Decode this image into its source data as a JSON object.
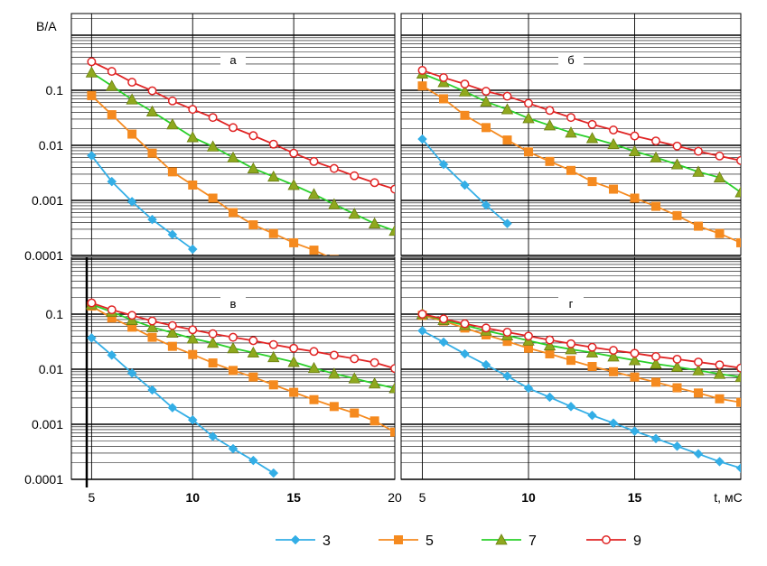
{
  "y_axis_label": "В/А",
  "x_axis_label": "t, мС",
  "chart_data": {
    "type": "scatter",
    "y_scale": "log",
    "ylim": [
      0.0001,
      1
    ],
    "y_ticks": [
      0.0001,
      0.001,
      0.01,
      0.1
    ],
    "y_tick_labels": [
      "0.0001",
      "0.001",
      "0.01",
      "0.1"
    ],
    "xlim": [
      4,
      20
    ],
    "x_ticks": [
      5,
      10,
      15,
      20
    ],
    "grid": true,
    "legend_placement": "bottom",
    "legend": [
      {
        "name": "3",
        "color": "#33aee6",
        "marker": "diamond"
      },
      {
        "name": "5",
        "color": "#f58a1f",
        "marker": "square"
      },
      {
        "name": "7",
        "color": "#8fa81e",
        "marker": "triangle"
      },
      {
        "name": "9",
        "color": "#e02424",
        "marker": "circle"
      }
    ],
    "panels": [
      {
        "label": "а",
        "series": [
          {
            "name": "3",
            "x": [
              5,
              6,
              7,
              8,
              9,
              10
            ],
            "y": [
              0.0065,
              0.0022,
              0.00095,
              0.00045,
              0.00024,
              0.00013
            ]
          },
          {
            "name": "5",
            "x": [
              5,
              6,
              7,
              8,
              9,
              10,
              11,
              12,
              13,
              14,
              15,
              16,
              17
            ],
            "y": [
              0.08,
              0.036,
              0.016,
              0.0072,
              0.0033,
              0.0019,
              0.0011,
              0.0006,
              0.00036,
              0.00025,
              0.00017,
              0.000125,
              8.5e-05
            ]
          },
          {
            "name": "7",
            "x": [
              5,
              6,
              7,
              8,
              9,
              10,
              11,
              12,
              13,
              14,
              15,
              16,
              17,
              18,
              19,
              20
            ],
            "y": [
              0.21,
              0.12,
              0.068,
              0.041,
              0.024,
              0.014,
              0.0095,
              0.006,
              0.0038,
              0.0027,
              0.0019,
              0.0013,
              0.00085,
              0.00057,
              0.00038,
              0.00028
            ]
          },
          {
            "name": "9",
            "x": [
              5,
              6,
              7,
              8,
              9,
              10,
              11,
              12,
              13,
              14,
              15,
              16,
              17,
              18,
              19,
              20
            ],
            "y": [
              0.33,
              0.22,
              0.14,
              0.098,
              0.064,
              0.045,
              0.032,
              0.021,
              0.015,
              0.0105,
              0.0072,
              0.0051,
              0.0038,
              0.0028,
              0.0021,
              0.0016
            ]
          }
        ]
      },
      {
        "label": "б",
        "series": [
          {
            "name": "3",
            "x": [
              5,
              6,
              7,
              8,
              9
            ],
            "y": [
              0.013,
              0.0045,
              0.0019,
              0.00082,
              0.00038
            ]
          },
          {
            "name": "5",
            "x": [
              5,
              6,
              7,
              8,
              9,
              10,
              11,
              12,
              13,
              14,
              15,
              16,
              17,
              18,
              19,
              20
            ],
            "y": [
              0.12,
              0.07,
              0.035,
              0.021,
              0.0125,
              0.0076,
              0.0051,
              0.0035,
              0.0022,
              0.0016,
              0.0011,
              0.00078,
              0.00053,
              0.00034,
              0.00025,
              0.00017
            ]
          },
          {
            "name": "7",
            "x": [
              5,
              6,
              7,
              8,
              9,
              10,
              11,
              12,
              13,
              14,
              15,
              16,
              17,
              18,
              19,
              20
            ],
            "y": [
              0.2,
              0.14,
              0.095,
              0.062,
              0.045,
              0.031,
              0.023,
              0.017,
              0.0135,
              0.0105,
              0.0078,
              0.006,
              0.0045,
              0.0033,
              0.0026,
              0.0014
            ]
          },
          {
            "name": "9",
            "x": [
              5,
              6,
              7,
              8,
              9,
              10,
              11,
              12,
              13,
              14,
              15,
              16,
              17,
              18,
              19,
              20
            ],
            "y": [
              0.23,
              0.17,
              0.13,
              0.096,
              0.078,
              0.058,
              0.043,
              0.032,
              0.024,
              0.019,
              0.0148,
              0.012,
              0.0097,
              0.0078,
              0.0064,
              0.0053
            ]
          }
        ]
      },
      {
        "label": "в",
        "series": [
          {
            "name": "3",
            "x": [
              5,
              6,
              7,
              8,
              9,
              10,
              11,
              12,
              13,
              14
            ],
            "y": [
              0.037,
              0.018,
              0.0085,
              0.0042,
              0.002,
              0.0012,
              0.0006,
              0.00036,
              0.00022,
              0.00013
            ]
          },
          {
            "name": "5",
            "x": [
              5,
              6,
              7,
              8,
              9,
              10,
              11,
              12,
              13,
              14,
              15,
              16,
              17,
              18,
              19,
              20
            ],
            "y": [
              0.14,
              0.085,
              0.058,
              0.038,
              0.026,
              0.0185,
              0.013,
              0.0095,
              0.0072,
              0.0052,
              0.0038,
              0.0028,
              0.0021,
              0.0016,
              0.00115,
              0.00072
            ]
          },
          {
            "name": "7",
            "x": [
              5,
              6,
              7,
              8,
              9,
              10,
              11,
              12,
              13,
              14,
              15,
              16,
              17,
              18,
              19,
              20
            ],
            "y": [
              0.15,
              0.11,
              0.078,
              0.058,
              0.046,
              0.036,
              0.03,
              0.024,
              0.02,
              0.0165,
              0.0135,
              0.0105,
              0.0083,
              0.0068,
              0.0055,
              0.0045
            ]
          },
          {
            "name": "9",
            "x": [
              5,
              6,
              7,
              8,
              9,
              10,
              11,
              12,
              13,
              14,
              15,
              16,
              17,
              18,
              19,
              20
            ],
            "y": [
              0.16,
              0.12,
              0.095,
              0.075,
              0.062,
              0.052,
              0.044,
              0.038,
              0.033,
              0.028,
              0.024,
              0.021,
              0.018,
              0.0155,
              0.0132,
              0.0103
            ]
          }
        ]
      },
      {
        "label": "г",
        "series": [
          {
            "name": "3",
            "x": [
              5,
              6,
              7,
              8,
              9,
              10,
              11,
              12,
              13,
              14,
              15,
              16,
              17,
              18,
              19,
              20
            ],
            "y": [
              0.05,
              0.031,
              0.019,
              0.012,
              0.0075,
              0.0045,
              0.0031,
              0.0021,
              0.00145,
              0.00105,
              0.00075,
              0.00055,
              0.0004,
              0.00029,
              0.00021,
              0.00016
            ]
          },
          {
            "name": "5",
            "x": [
              5,
              6,
              7,
              8,
              9,
              10,
              11,
              12,
              13,
              14,
              15,
              16,
              17,
              18,
              19,
              20
            ],
            "y": [
              0.095,
              0.075,
              0.056,
              0.042,
              0.032,
              0.024,
              0.019,
              0.0145,
              0.0112,
              0.009,
              0.0072,
              0.0058,
              0.0046,
              0.0037,
              0.0029,
              0.0025
            ]
          },
          {
            "name": "7",
            "x": [
              5,
              6,
              7,
              8,
              9,
              10,
              11,
              12,
              13,
              14,
              15,
              16,
              17,
              18,
              19,
              20
            ],
            "y": [
              0.1,
              0.078,
              0.063,
              0.05,
              0.041,
              0.033,
              0.027,
              0.023,
              0.02,
              0.017,
              0.0145,
              0.0125,
              0.011,
              0.0095,
              0.0082,
              0.0072
            ]
          },
          {
            "name": "9",
            "x": [
              5,
              6,
              7,
              8,
              9,
              10,
              11,
              12,
              13,
              14,
              15,
              16,
              17,
              18,
              19,
              20
            ],
            "y": [
              0.1,
              0.082,
              0.067,
              0.056,
              0.047,
              0.04,
              0.034,
              0.029,
              0.025,
              0.022,
              0.0195,
              0.017,
              0.0152,
              0.0135,
              0.012,
              0.0105
            ]
          }
        ]
      }
    ]
  }
}
